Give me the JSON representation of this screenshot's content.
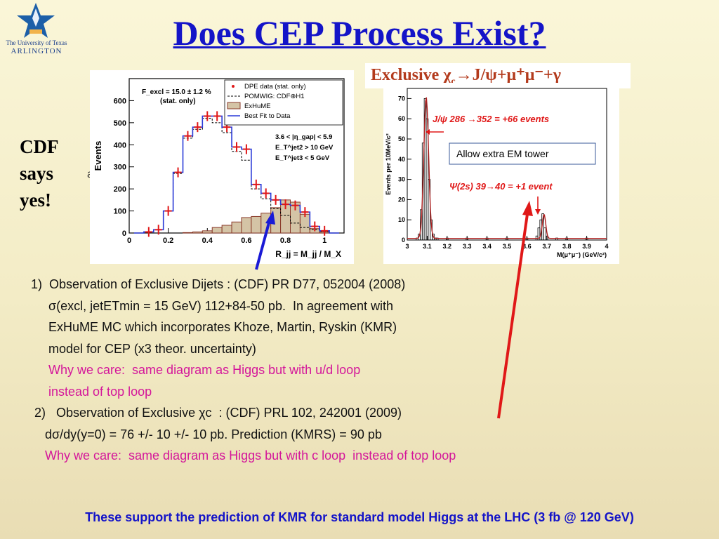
{
  "title": "Does CEP Process Exist?",
  "logo": {
    "line1": "The University of Texas",
    "line2": "ARLINGTON"
  },
  "side_note": [
    "CDF",
    "says",
    "yes!"
  ],
  "stray_text": "al",
  "plot1": {
    "ylabel": "Events",
    "xlabel": "R_jj = M_jj / M_X",
    "fexcl_label": "F_excl = 15.0 ± 1.2 %",
    "fexcl_sub": "(stat. only)",
    "cuts": [
      "3.6 < |η_gap| < 5.9",
      "E_T^jet2 > 10 GeV",
      "E_T^jet3 < 5 GeV"
    ],
    "legend": [
      "DPE data (stat. only)",
      "POMWIG: CDF⊕H1",
      "ExHuME",
      "Best Fit to Data"
    ],
    "x_ticks": [
      "0",
      "0.2",
      "0.4",
      "0.6",
      "0.8",
      "1"
    ],
    "y_ticks": [
      "0",
      "100",
      "200",
      "300",
      "400",
      "500",
      "600"
    ]
  },
  "plot2": {
    "header": "Exclusive χ",
    "header_sub": "c",
    "header_rest": "→J/ψ+μ⁺μ⁻+γ",
    "ylabel": "Events per 10MeV/c²",
    "xlabel": "M(μ⁺μ⁻) (GeV/c²)",
    "annot1": "J/ψ 286 →352 = +66 events",
    "annot2": "Ψ(2s) 39→40 = +1 event",
    "box_text": "Allow extra EM tower",
    "x_ticks": [
      "3",
      "3.1",
      "3.2",
      "3.3",
      "3.4",
      "3.5",
      "3.6",
      "3.7",
      "3.8",
      "3.9",
      "4"
    ],
    "y_ticks": [
      "0",
      "10",
      "20",
      "30",
      "40",
      "50",
      "60",
      "70"
    ]
  },
  "chart_data": [
    {
      "type": "bar",
      "xlabel": "R_jj = M_jj / M_X",
      "ylabel": "Events",
      "xlim": [
        0,
        1.1
      ],
      "ylim": [
        0,
        700
      ],
      "bin_width": 0.05,
      "x": [
        0.05,
        0.1,
        0.15,
        0.2,
        0.25,
        0.3,
        0.35,
        0.4,
        0.45,
        0.5,
        0.55,
        0.6,
        0.65,
        0.7,
        0.75,
        0.8,
        0.85,
        0.9,
        0.95,
        1.0,
        1.05
      ],
      "series": [
        {
          "name": "DPE data (stat. only)",
          "values": [
            0,
            5,
            15,
            100,
            275,
            440,
            480,
            530,
            530,
            480,
            390,
            380,
            220,
            180,
            150,
            130,
            125,
            95,
            30,
            10,
            0
          ]
        },
        {
          "name": "POMWIG: CDF⊕H1",
          "values": [
            0,
            5,
            15,
            100,
            270,
            430,
            470,
            520,
            500,
            455,
            370,
            330,
            200,
            155,
            110,
            80,
            45,
            25,
            15,
            5,
            0
          ]
        },
        {
          "name": "ExHuME",
          "values": [
            0,
            0,
            0,
            0,
            0,
            2,
            5,
            10,
            25,
            35,
            50,
            70,
            75,
            90,
            115,
            150,
            140,
            85,
            20,
            5,
            0
          ]
        },
        {
          "name": "Best Fit to Data",
          "values": [
            0,
            5,
            15,
            100,
            275,
            440,
            480,
            530,
            530,
            480,
            390,
            380,
            220,
            180,
            150,
            130,
            125,
            95,
            30,
            10,
            0
          ]
        }
      ]
    },
    {
      "type": "bar",
      "xlabel": "M(μ⁺μ⁻) (GeV/c²)",
      "ylabel": "Events per 10MeV/c²",
      "xlim": [
        3.0,
        4.0
      ],
      "ylim": [
        0,
        75
      ],
      "x": [
        3.05,
        3.06,
        3.07,
        3.08,
        3.09,
        3.1,
        3.11,
        3.12,
        3.13,
        3.14,
        3.15,
        3.2,
        3.3,
        3.4,
        3.5,
        3.6,
        3.65,
        3.66,
        3.67,
        3.68,
        3.69,
        3.7,
        3.75,
        3.8,
        3.9
      ],
      "values": [
        1,
        3,
        15,
        48,
        70,
        60,
        30,
        10,
        3,
        1,
        1,
        1,
        1,
        1,
        1,
        1,
        2,
        6,
        10,
        13,
        6,
        2,
        1,
        1,
        1
      ]
    }
  ],
  "references": [
    {
      "text": "1)  Observation of Exclusive Dijets : (CDF) PR D77, 052004 (2008)",
      "color": "#111"
    },
    {
      "text": "     σ(excl, jetETmin = 15 GeV) 112+84-50 pb.  In agreement with",
      "color": "#111"
    },
    {
      "text": "     ExHuME MC which incorporates Khoze, Martin, Ryskin (KMR)",
      "color": "#111"
    },
    {
      "text": "     model for CEP (x3 theor. uncertainty)",
      "color": "#111"
    },
    {
      "text": "     Why we care:  same diagram as Higgs but with u/d loop",
      "color": "#d4169a"
    },
    {
      "text": "     instead of top loop",
      "color": "#d4169a"
    },
    {
      "text": " 2)   Observation of Exclusive χc  : (CDF) PRL 102, 242001 (2009)",
      "color": "#111"
    },
    {
      "text": "    dσ/dy(y=0) = 76 +/- 10 +/- 10 pb. Prediction (KMRS) = 90 pb",
      "color": "#111"
    },
    {
      "text": "    Why we care:  same diagram as Higgs but with c loop  instead of top loop",
      "color": "#d4169a"
    }
  ],
  "bottom_line": "These support the prediction of KMR for standard model Higgs at the LHC (3 fb @ 120 GeV)"
}
